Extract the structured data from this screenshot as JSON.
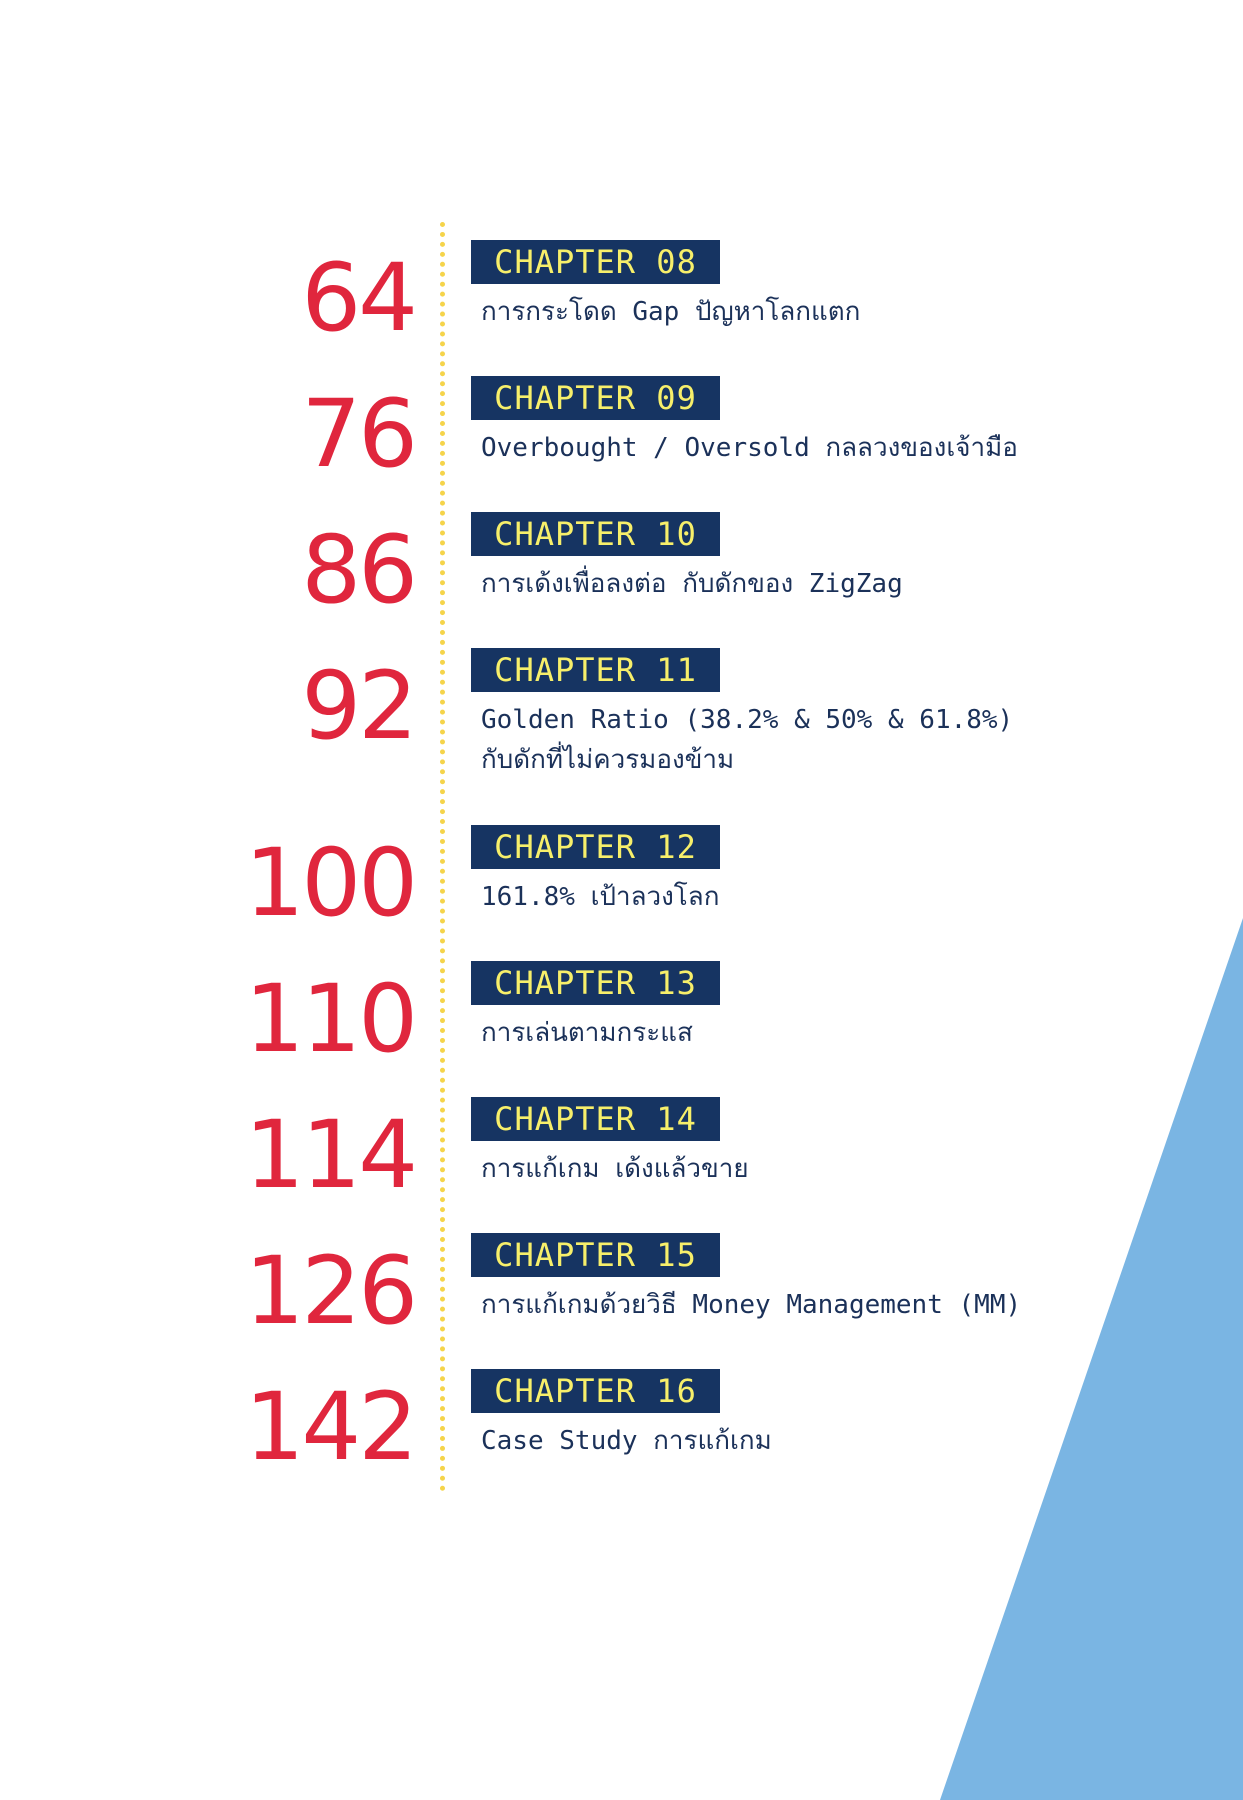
{
  "toc": {
    "entries": [
      {
        "page": "64",
        "chapter": "CHAPTER 08",
        "title": "การกระโดด Gap ปัญหาโลกแตก"
      },
      {
        "page": "76",
        "chapter": "CHAPTER 09",
        "title": "Overbought / Oversold กลลวงของเจ้ามือ"
      },
      {
        "page": "86",
        "chapter": "CHAPTER 10",
        "title": "การเด้งเพื่อลงต่อ กับดักของ ZigZag"
      },
      {
        "page": "92",
        "chapter": "CHAPTER 11",
        "title": "Golden Ratio (38.2% & 50% & 61.8%)\nกับดักที่ไม่ควรมองข้าม"
      },
      {
        "page": "100",
        "chapter": "CHAPTER 12",
        "title": "161.8% เป้าลวงโลก"
      },
      {
        "page": "110",
        "chapter": "CHAPTER 13",
        "title": "การเล่นตามกระแส"
      },
      {
        "page": "114",
        "chapter": "CHAPTER 14",
        "title": "การแก้เกม เด้งแล้วขาย"
      },
      {
        "page": "126",
        "chapter": "CHAPTER 15",
        "title": "การแก้เกมด้วยวิธี Money Management (MM)"
      },
      {
        "page": "142",
        "chapter": "CHAPTER 16",
        "title": "Case Study การแก้เกม"
      }
    ]
  },
  "colors": {
    "page_number": "#e0263d",
    "badge_background": "#163462",
    "badge_text": "#f7ef6a",
    "title_text": "#1b3159",
    "dotted_line": "#f5d44a",
    "accent_triangle": "#7ab5e3"
  }
}
